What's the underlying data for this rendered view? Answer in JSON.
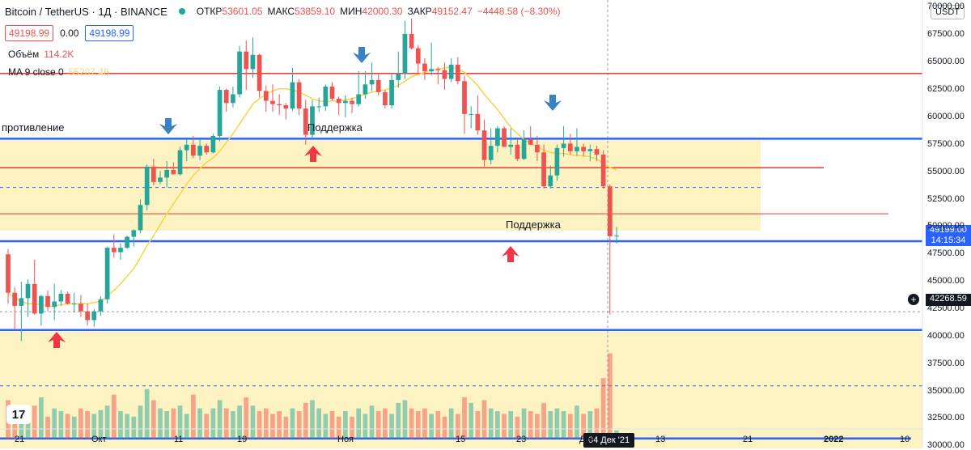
{
  "header": {
    "symbol": "Bitcoin / TetherUS · 1Д · BINANCE",
    "open_label": "ОТКР",
    "open_value": "53601.05",
    "high_label": "МАКС",
    "high_value": "53859.10",
    "low_label": "МИН",
    "low_value": "42000.30",
    "close_label": "ЗАКР",
    "close_value": "49152.47",
    "change": "−4448.58 (−8.30%)"
  },
  "order": {
    "sell": "49198.99",
    "spread": "0.00",
    "buy": "49198.99"
  },
  "indicators": {
    "volume_label": "Объём",
    "volume_value": "114.2K",
    "ma_label": "MA 9 close 0",
    "ma_value": "55207.46"
  },
  "currency_button": "USDT",
  "price_tags": {
    "last": "49199.00",
    "countdown": "14:15:34",
    "crosshair": "42268.59"
  },
  "annotations": {
    "resistance": "противление",
    "support_1": "Поддержка",
    "support_2": "Поддержка"
  },
  "crosshair_date": "04 Дек '21",
  "colors": {
    "up": "#26a69a",
    "down": "#ef5350",
    "zone": "#fdf3c2",
    "blue_line": "#2962ff",
    "red_line": "#e53935",
    "ma": "#f5d547",
    "arrow_blue": "#3b82c4",
    "arrow_red": "#f23645"
  },
  "chart_data": {
    "type": "candlestick",
    "y_ticks": [
      "70000.00",
      "67500.00",
      "65000.00",
      "62500.00",
      "60000.00",
      "57500.00",
      "55000.00",
      "52500.00",
      "50000.00",
      "47500.00",
      "45000.00",
      "42500.00",
      "40000.00",
      "37500.00",
      "35000.00",
      "32500.00",
      "30000.00"
    ],
    "x_ticks": [
      "21",
      "Окт",
      "11",
      "19",
      "Ноя",
      "15",
      "23",
      "Дек",
      "13",
      "21",
      "2022",
      "10"
    ],
    "ylim": [
      29800,
      70700
    ],
    "candles": [
      [
        47500,
        48000,
        43000,
        44000
      ],
      [
        44000,
        44500,
        40600,
        42800
      ],
      [
        42800,
        45000,
        39600,
        43500
      ],
      [
        43500,
        45200,
        41800,
        44800
      ],
      [
        44800,
        47000,
        42000,
        42100
      ],
      [
        42100,
        43800,
        41000,
        43700
      ],
      [
        43700,
        44200,
        42300,
        42700
      ],
      [
        42700,
        44800,
        41500,
        43200
      ],
      [
        43200,
        44200,
        42800,
        43900
      ],
      [
        43900,
        44100,
        42900,
        43000
      ],
      [
        43000,
        44000,
        42200,
        43000
      ],
      [
        43000,
        43800,
        41800,
        42300
      ],
      [
        42300,
        43000,
        41000,
        41500
      ],
      [
        41500,
        42500,
        40900,
        42300
      ],
      [
        42300,
        43700,
        41900,
        43400
      ],
      [
        43400,
        48200,
        43000,
        48100
      ],
      [
        48100,
        49300,
        47200,
        47700
      ],
      [
        47700,
        48500,
        47000,
        48100
      ],
      [
        48100,
        49200,
        48000,
        49100
      ],
      [
        49100,
        49800,
        48200,
        49700
      ],
      [
        49700,
        52500,
        49400,
        52000
      ],
      [
        52000,
        55700,
        51500,
        55500
      ],
      [
        55500,
        56200,
        53800,
        54100
      ],
      [
        54100,
        55100,
        53900,
        54500
      ],
      [
        54500,
        56000,
        53600,
        55200
      ],
      [
        55200,
        55900,
        54800,
        54800
      ],
      [
        54800,
        57300,
        54700,
        57000
      ],
      [
        57000,
        58000,
        56000,
        57500
      ],
      [
        57500,
        58300,
        56300,
        56500
      ],
      [
        56500,
        58000,
        56100,
        57400
      ],
      [
        57400,
        57600,
        56600,
        56800
      ],
      [
        56800,
        58500,
        56700,
        58300
      ],
      [
        58300,
        62800,
        57800,
        62500
      ],
      [
        62500,
        62600,
        60500,
        61300
      ],
      [
        61300,
        62800,
        60900,
        62100
      ],
      [
        62100,
        66500,
        61800,
        66000
      ],
      [
        66000,
        67000,
        62500,
        64400
      ],
      [
        64400,
        67300,
        63600,
        65700
      ],
      [
        65700,
        65800,
        61800,
        62400
      ],
      [
        62400,
        62900,
        60500,
        61500
      ],
      [
        61500,
        63000,
        60500,
        61200
      ],
      [
        61200,
        62100,
        60200,
        61100
      ],
      [
        61100,
        61300,
        59800,
        60800
      ],
      [
        60800,
        64500,
        60600,
        63200
      ],
      [
        63200,
        63500,
        60200,
        60800
      ],
      [
        60800,
        61600,
        57500,
        58400
      ],
      [
        58400,
        61600,
        58000,
        61000
      ],
      [
        61000,
        61800,
        60500,
        61000
      ],
      [
        61000,
        63000,
        60600,
        62800
      ],
      [
        62800,
        63200,
        61500,
        61700
      ],
      [
        61700,
        61900,
        60200,
        61300
      ],
      [
        61300,
        62000,
        60000,
        61500
      ],
      [
        61500,
        61800,
        60400,
        61200
      ],
      [
        61200,
        64200,
        61000,
        62100
      ],
      [
        62100,
        64200,
        61700,
        63000
      ],
      [
        63000,
        65000,
        62400,
        63400
      ],
      [
        63400,
        64000,
        62000,
        62300
      ],
      [
        62300,
        62500,
        60800,
        61100
      ],
      [
        61100,
        64000,
        60800,
        63400
      ],
      [
        63400,
        66000,
        62700,
        64000
      ],
      [
        64000,
        68800,
        63500,
        67600
      ],
      [
        67600,
        69000,
        66200,
        66300
      ],
      [
        66300,
        66600,
        64000,
        64900
      ],
      [
        64900,
        65400,
        63400,
        64200
      ],
      [
        64200,
        66800,
        63800,
        64400
      ],
      [
        64400,
        64600,
        63000,
        64300
      ],
      [
        64300,
        65000,
        62500,
        63500
      ],
      [
        63500,
        65400,
        63200,
        64800
      ],
      [
        64800,
        65500,
        63000,
        63300
      ],
      [
        63300,
        63800,
        58500,
        60300
      ],
      [
        60300,
        61000,
        59000,
        60300
      ],
      [
        60300,
        62000,
        58400,
        58800
      ],
      [
        58800,
        59800,
        55500,
        56100
      ],
      [
        56100,
        59000,
        55700,
        57400
      ],
      [
        57400,
        59200,
        56800,
        59000
      ],
      [
        59000,
        59200,
        57300,
        57300
      ],
      [
        57300,
        59000,
        56600,
        57500
      ],
      [
        57500,
        58000,
        56000,
        56200
      ],
      [
        56200,
        58800,
        56100,
        58000
      ],
      [
        58000,
        59200,
        57500,
        57500
      ],
      [
        57500,
        58300,
        56000,
        56800
      ],
      [
        56800,
        57500,
        53500,
        53700
      ],
      [
        53700,
        55600,
        53500,
        54700
      ],
      [
        54700,
        57500,
        54200,
        57200
      ],
      [
        57200,
        59200,
        56400,
        57600
      ],
      [
        57600,
        58500,
        56600,
        56900
      ],
      [
        56900,
        59000,
        56500,
        57300
      ],
      [
        57300,
        57600,
        56400,
        56900
      ],
      [
        56900,
        57500,
        56000,
        57100
      ],
      [
        57100,
        57400,
        56000,
        56600
      ],
      [
        56600,
        57000,
        53500,
        53700
      ],
      [
        53700,
        53860,
        42000,
        49150
      ],
      [
        49150,
        50000,
        48500,
        49199
      ]
    ],
    "ma9": [
      44000,
      43500,
      43200,
      43000,
      43000,
      42900,
      42800,
      42800,
      42900,
      43000,
      43000,
      43000,
      43000,
      43100,
      43200,
      43700,
      44200,
      44800,
      45500,
      46200,
      47200,
      48300,
      49200,
      50200,
      51200,
      52100,
      53000,
      53900,
      54700,
      55300,
      55900,
      56300,
      56900,
      57700,
      58500,
      59400,
      60300,
      61200,
      61700,
      62100,
      62400,
      62600,
      62600,
      62500,
      62300,
      62000,
      61700,
      61500,
      61400,
      61500,
      61500,
      61600,
      61700,
      61900,
      62100,
      62300,
      62400,
      62500,
      62700,
      62900,
      63300,
      63700,
      63900,
      64100,
      64300,
      64400,
      64500,
      64600,
      64400,
      64100,
      63500,
      62900,
      62100,
      61400,
      60700,
      59900,
      59100,
      58500,
      58000,
      57600,
      57300,
      57000,
      56800,
      56700,
      56700,
      56600,
      56500,
      56500,
      56400,
      56200,
      55800,
      55400,
      55200
    ],
    "volume": [
      70,
      45,
      55,
      50,
      60,
      75,
      40,
      55,
      50,
      45,
      40,
      55,
      50,
      45,
      52,
      60,
      80,
      50,
      45,
      40,
      60,
      90,
      70,
      55,
      50,
      55,
      60,
      45,
      80,
      55,
      45,
      55,
      70,
      55,
      50,
      60,
      75,
      60,
      50,
      55,
      45,
      50,
      40,
      55,
      50,
      65,
      70,
      55,
      45,
      50,
      40,
      50,
      40,
      55,
      45,
      60,
      50,
      55,
      45,
      65,
      70,
      55,
      50,
      55,
      45,
      50,
      40,
      55,
      45,
      75,
      65,
      50,
      70,
      55,
      50,
      45,
      50,
      40,
      55,
      50,
      45,
      65,
      50,
      55,
      50,
      45,
      60,
      45,
      50,
      55,
      110,
      155,
      15
    ]
  }
}
